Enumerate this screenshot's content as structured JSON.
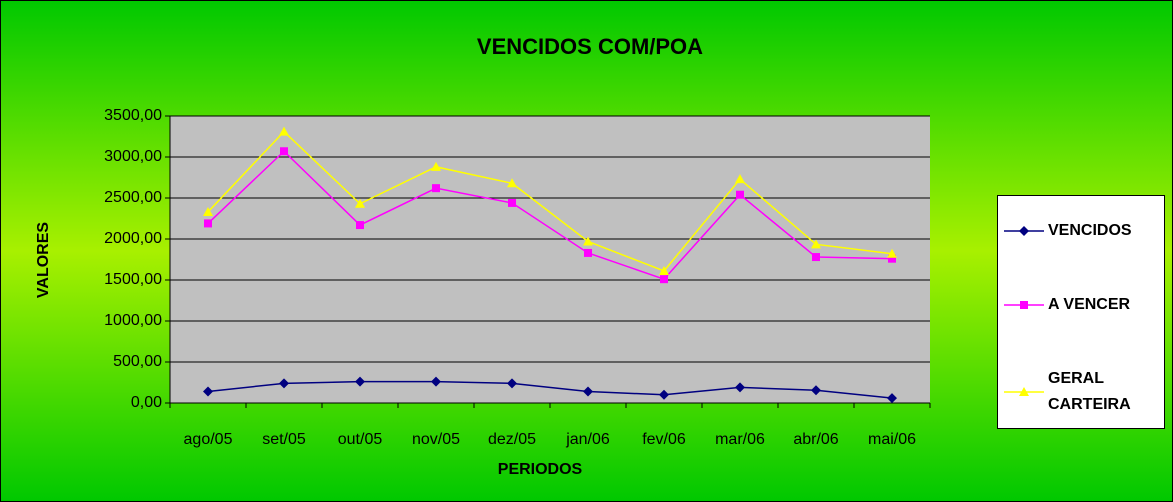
{
  "chart_data": {
    "type": "line",
    "title": "VENCIDOS COM/POA",
    "x_label": "PERIODOS",
    "y_label": "VALORES",
    "categories": [
      "ago/05",
      "set/05",
      "out/05",
      "nov/05",
      "dez/05",
      "jan/06",
      "fev/06",
      "mar/06",
      "abr/06",
      "mai/06"
    ],
    "series": [
      {
        "name": "VENCIDOS",
        "color": "#000080",
        "marker": "diamond",
        "values": [
          140,
          240,
          260,
          260,
          240,
          140,
          100,
          190,
          155,
          60
        ]
      },
      {
        "name": "A VENCER",
        "color": "#ff00ff",
        "marker": "square",
        "values": [
          2190,
          3070,
          2170,
          2620,
          2440,
          1830,
          1510,
          2540,
          1780,
          1760
        ]
      },
      {
        "name": "GERAL CARTEIRA",
        "color": "#ffff00",
        "marker": "triangle",
        "values": [
          2330,
          3310,
          2430,
          2880,
          2680,
          1970,
          1610,
          2730,
          1935,
          1820
        ]
      }
    ],
    "ylim": [
      0,
      3500
    ],
    "yticks": [
      {
        "value": 0,
        "label": "0,00"
      },
      {
        "value": 500,
        "label": "500,00"
      },
      {
        "value": 1000,
        "label": "1000,00"
      },
      {
        "value": 1500,
        "label": "1500,00"
      },
      {
        "value": 2000,
        "label": "2000,00"
      },
      {
        "value": 2500,
        "label": "2500,00"
      },
      {
        "value": 3000,
        "label": "3000,00"
      },
      {
        "value": 3500,
        "label": "3500,00"
      }
    ],
    "grid": true,
    "legend": "right"
  }
}
